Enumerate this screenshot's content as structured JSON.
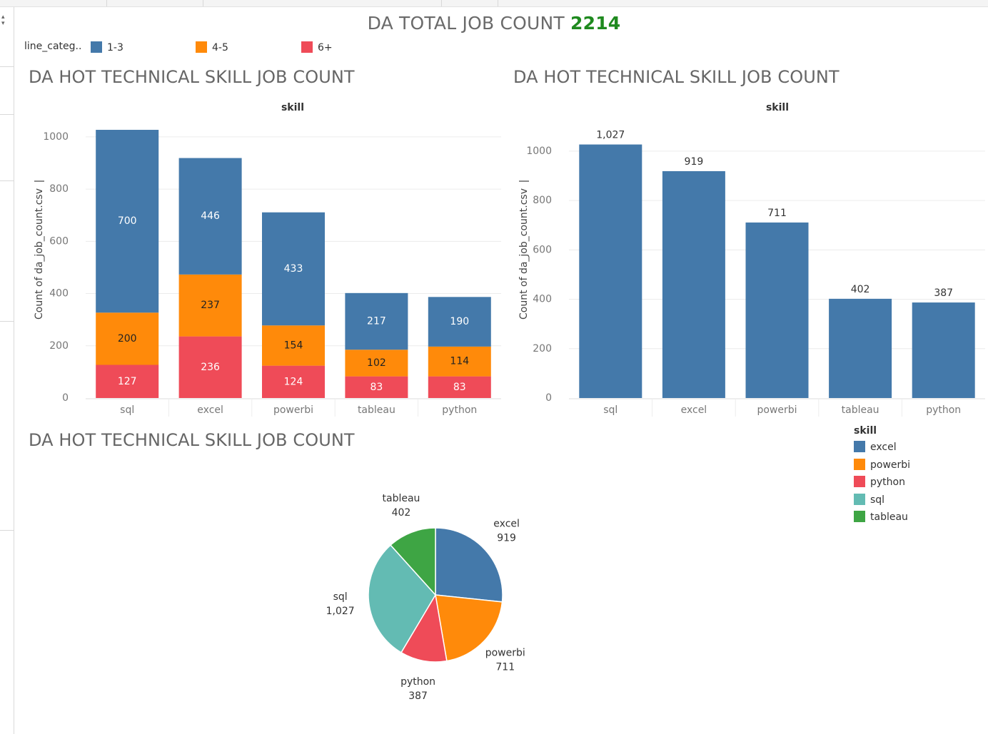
{
  "dashboard": {
    "title_text": "DA TOTAL JOB COUNT",
    "title_value": "2214"
  },
  "colors": {
    "blue": "#4479aa",
    "orange": "#ff8a0a",
    "red": "#ef4b58",
    "teal": "#63bbb3",
    "green": "#3ea544",
    "title_green": "#1f8a1f"
  },
  "line_legend": {
    "title": "line_categ..",
    "items": [
      {
        "label": "1-3",
        "color": "#4479aa"
      },
      {
        "label": "4-5",
        "color": "#ff8a0a"
      },
      {
        "label": "6+",
        "color": "#ef4b58"
      }
    ]
  },
  "sheets": {
    "stacked_title": "DA HOT TECHNICAL SKILL JOB COUNT",
    "bar_title": "DA HOT TECHNICAL SKILL JOB COUNT",
    "pie_title": "DA HOT TECHNICAL SKILL JOB COUNT"
  },
  "skill_legend": {
    "title": "skill",
    "items": [
      {
        "label": "excel",
        "color": "#4479aa"
      },
      {
        "label": "powerbi",
        "color": "#ff8a0a"
      },
      {
        "label": "python",
        "color": "#ef4b58"
      },
      {
        "label": "sql",
        "color": "#63bbb3"
      },
      {
        "label": "tableau",
        "color": "#3ea544"
      }
    ]
  },
  "chart_data": [
    {
      "type": "bar",
      "stacked": true,
      "title": "DA HOT TECHNICAL SKILL JOB COUNT",
      "header": "skill",
      "xlabel": "",
      "ylabel": "Count of da_job_count.csv",
      "categories": [
        "sql",
        "excel",
        "powerbi",
        "tableau",
        "python"
      ],
      "series": [
        {
          "name": "6+",
          "values": [
            127,
            236,
            124,
            83,
            83
          ],
          "color": "#ef4b58"
        },
        {
          "name": "4-5",
          "values": [
            200,
            237,
            154,
            102,
            114
          ],
          "color": "#ff8a0a"
        },
        {
          "name": "1-3",
          "values": [
            700,
            446,
            433,
            217,
            190
          ],
          "color": "#4479aa"
        }
      ],
      "labels": [
        [
          "127",
          "236",
          "124",
          "83",
          "83"
        ],
        [
          "200",
          "237",
          "154",
          "102",
          "114"
        ],
        [
          "700",
          "446",
          "433",
          "217",
          "190"
        ]
      ],
      "yticks": [
        "0",
        "200",
        "400",
        "600",
        "800",
        "1000"
      ],
      "ylim": [
        0,
        1000
      ],
      "grid": true
    },
    {
      "type": "bar",
      "title": "DA HOT TECHNICAL SKILL JOB COUNT",
      "header": "skill",
      "xlabel": "",
      "ylabel": "Count of da_job_count.csv",
      "categories": [
        "sql",
        "excel",
        "powerbi",
        "tableau",
        "python"
      ],
      "values": [
        1027,
        919,
        711,
        402,
        387
      ],
      "labels": [
        "1,027",
        "919",
        "711",
        "402",
        "387"
      ],
      "yticks": [
        "0",
        "200",
        "400",
        "600",
        "800",
        "1000"
      ],
      "ylim": [
        0,
        1000
      ],
      "grid": true,
      "color": "#4479aa"
    },
    {
      "type": "pie",
      "title": "DA HOT TECHNICAL SKILL JOB COUNT",
      "slices": [
        {
          "name": "excel",
          "value": 919,
          "label": "919",
          "color": "#4479aa"
        },
        {
          "name": "powerbi",
          "value": 711,
          "label": "711",
          "color": "#ff8a0a"
        },
        {
          "name": "python",
          "value": 387,
          "label": "387",
          "color": "#ef4b58"
        },
        {
          "name": "sql",
          "value": 1027,
          "label": "1,027",
          "color": "#63bbb3"
        },
        {
          "name": "tableau",
          "value": 402,
          "label": "402",
          "color": "#3ea544"
        }
      ]
    }
  ]
}
